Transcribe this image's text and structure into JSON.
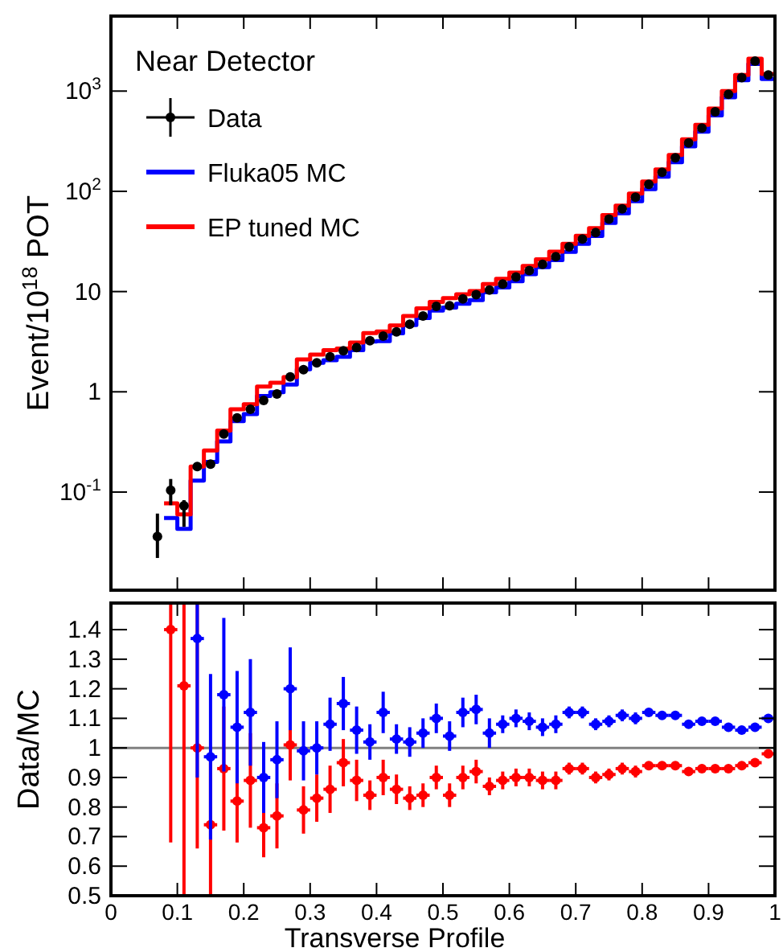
{
  "chart_data": [
    {
      "type": "histogram",
      "ylabel": "Event/10$^{18}$ POT",
      "legend_title": "Near Detector",
      "log": true,
      "legend": "top left",
      "tick_labels": "y",
      "xlim": [
        0,
        1
      ],
      "xticks": [
        {
          "value": 0,
          "label": null
        },
        {
          "value": 0.1,
          "label": null
        },
        {
          "value": 0.2,
          "label": null
        },
        {
          "value": 0.3,
          "label": null
        },
        {
          "value": 0.4,
          "label": null
        },
        {
          "value": 0.5,
          "label": null
        },
        {
          "value": 0.6,
          "label": null
        },
        {
          "value": 0.7,
          "label": null
        },
        {
          "value": 0.8,
          "label": null
        },
        {
          "value": 0.9,
          "label": null
        },
        {
          "value": 1,
          "label": null
        }
      ],
      "ylim": [
        0.0105,
        5600
      ],
      "yticks": [
        {
          "value": 0.1,
          "label": "10$^{-1}$"
        },
        1,
        10,
        {
          "value": 100,
          "label": "10$^{2}$"
        },
        {
          "value": 1000,
          "label": "10$^{3}$"
        }
      ],
      "bins": [
        0.08,
        0.1,
        0.12,
        0.14,
        0.16,
        0.18,
        0.2,
        0.22,
        0.24,
        0.26,
        0.28,
        0.3,
        0.32,
        0.34,
        0.36,
        0.38,
        0.4,
        0.42,
        0.44,
        0.46,
        0.48,
        0.5,
        0.52,
        0.54,
        0.56,
        0.58,
        0.6,
        0.62,
        0.64,
        0.66,
        0.68,
        0.7,
        0.72,
        0.74,
        0.76,
        0.78,
        0.8,
        0.82,
        0.84,
        0.86,
        0.88,
        0.9,
        0.92,
        0.94,
        0.96,
        0.98,
        1.0
      ],
      "series": [
        {
          "name": "Data",
          "type": "scatter",
          "color": "#000000",
          "marker": "circle",
          "x": [
            0.07,
            0.09,
            0.11,
            0.13,
            0.15,
            0.17,
            0.19,
            0.21,
            0.23,
            0.25,
            0.27,
            0.29,
            0.31,
            0.33,
            0.35,
            0.37,
            0.39,
            0.41,
            0.43,
            0.45,
            0.47,
            0.49,
            0.51,
            0.53,
            0.55,
            0.57,
            0.59,
            0.61,
            0.63,
            0.65,
            0.67,
            0.69,
            0.71,
            0.73,
            0.75,
            0.77,
            0.79,
            0.81,
            0.83,
            0.85,
            0.87,
            0.89,
            0.91,
            0.93,
            0.95,
            0.97,
            0.99
          ],
          "values": [
            0.036,
            0.104,
            0.073,
            0.18,
            0.19,
            0.38,
            0.55,
            0.67,
            0.82,
            0.95,
            1.41,
            1.66,
            1.95,
            2.24,
            2.57,
            2.76,
            3.23,
            3.6,
            3.96,
            4.73,
            5.71,
            7.11,
            7.22,
            8.46,
            9.29,
            10.35,
            11.9,
            13.95,
            16.2,
            18.7,
            22.3,
            27.9,
            33.5,
            38.7,
            52.8,
            67,
            87.4,
            117.5,
            155,
            216,
            304,
            428,
            623,
            930,
            1363,
            1995,
            1450
          ],
          "errors": [
            [
              0.022,
              0.061
            ],
            [
              0.074,
              0.135
            ],
            [
              0.045,
              0.083
            ],
            null,
            null,
            null,
            null,
            null,
            null,
            null,
            null,
            null,
            null,
            null,
            null,
            null,
            null,
            null,
            null,
            null,
            null,
            null,
            null,
            null,
            null,
            null,
            null,
            null,
            null,
            null,
            null,
            null,
            null,
            null,
            null,
            null,
            null,
            null,
            null,
            null,
            null,
            null,
            null,
            null,
            null,
            null,
            null
          ]
        },
        {
          "name": "Fluka05 MC",
          "color": "#0000ff",
          "values": [
            0.055,
            0.043,
            0.13,
            0.2,
            0.32,
            0.51,
            0.6,
            0.91,
            0.99,
            1.18,
            1.68,
            1.95,
            2.07,
            2.23,
            2.6,
            3.17,
            3.21,
            3.84,
            4.64,
            5.44,
            6.46,
            6.94,
            7.55,
            8.22,
            9.86,
            11.0,
            12.7,
            14.9,
            17.5,
            20.6,
            24.9,
            29.9,
            35.8,
            48.4,
            60.3,
            79.5,
            105,
            140,
            195,
            281,
            393,
            572,
            869,
            1286,
            1864,
            1318
          ]
        },
        {
          "name": "EP tuned MC",
          "color": "#ff0000",
          "values": [
            0.077,
            0.06,
            0.18,
            0.26,
            0.41,
            0.67,
            0.75,
            1.13,
            1.23,
            1.4,
            2.1,
            2.35,
            2.6,
            2.7,
            3.1,
            3.85,
            4.0,
            4.6,
            5.7,
            6.8,
            7.9,
            8.6,
            9.4,
            10.1,
            11.9,
            13.4,
            15.5,
            18,
            21,
            25,
            30,
            36,
            43,
            58,
            72,
            95,
            125,
            165,
            230,
            330,
            460,
            670,
            1000,
            1450,
            2100,
            1480
          ]
        }
      ]
    },
    {
      "type": "scatter",
      "xlabel": "Transverse Profile",
      "ylabel": "Data/MC",
      "marker": "circle",
      "xlim": [
        0,
        1
      ],
      "xticks": [
        0,
        0.1,
        0.2,
        0.3,
        0.4,
        0.5,
        0.6,
        0.7,
        0.8,
        0.9,
        1
      ],
      "ylim": [
        0.5,
        1.49
      ],
      "yticks": [
        0.5,
        0.6,
        0.7,
        0.8,
        0.9,
        1,
        1.1,
        1.2,
        1.3,
        1.4
      ],
      "ref_lines": [
        {
          "axis": "y",
          "value": 1,
          "color": "#808080"
        }
      ],
      "series": [
        {
          "color": "#0000ff",
          "x": [
            0.13,
            0.15,
            0.17,
            0.19,
            0.21,
            0.23,
            0.25,
            0.27,
            0.29,
            0.31,
            0.33,
            0.35,
            0.37,
            0.39,
            0.41,
            0.43,
            0.45,
            0.47,
            0.49,
            0.51,
            0.53,
            0.55,
            0.57,
            0.59,
            0.61,
            0.63,
            0.65,
            0.67,
            0.69,
            0.71,
            0.73,
            0.75,
            0.77,
            0.79,
            0.81,
            0.83,
            0.85,
            0.87,
            0.89,
            0.91,
            0.93,
            0.95,
            0.97,
            0.99
          ],
          "values": [
            1.37,
            0.97,
            1.18,
            1.07,
            1.12,
            0.9,
            0.96,
            1.2,
            0.99,
            1.0,
            1.08,
            1.15,
            1.06,
            1.02,
            1.12,
            1.03,
            1.02,
            1.05,
            1.1,
            1.04,
            1.12,
            1.13,
            1.05,
            1.08,
            1.1,
            1.09,
            1.07,
            1.08,
            1.12,
            1.12,
            1.08,
            1.09,
            1.11,
            1.1,
            1.12,
            1.11,
            1.11,
            1.08,
            1.09,
            1.09,
            1.07,
            1.06,
            1.07,
            1.1
          ],
          "errors": [
            [
              0.9,
              1.49
            ],
            0.28,
            0.26,
            0.19,
            0.18,
            0.12,
            0.13,
            0.14,
            0.1,
            0.09,
            0.09,
            0.09,
            0.08,
            0.06,
            0.07,
            0.05,
            0.05,
            0.05,
            0.05,
            0.05,
            0.05,
            0.05,
            0.05,
            0.03,
            0.03,
            0.03,
            0.03,
            0.03,
            0.02,
            0.02,
            0.02,
            0.02,
            0.02,
            0.02,
            0.01,
            0.01,
            0.01,
            0.01,
            0.01,
            0.01,
            0.01,
            0.01,
            0.01,
            0.01
          ],
          "xerrors": [
            0.01,
            0.01,
            0.01,
            0.01,
            0.01,
            0.01,
            0.01,
            0.01,
            0.01,
            0.01,
            0.01,
            0.01,
            0.01,
            0.01,
            0.01,
            0.01,
            0.01,
            0.01,
            0.01,
            0.01,
            0.01,
            0.01,
            0.01,
            0.01,
            0.01,
            0.01,
            0.01,
            0.01,
            0.01,
            0.01,
            0.01,
            0.01,
            0.01,
            0.01,
            0.01,
            0.01,
            0.01,
            0.01,
            0.01,
            0.01,
            0.01,
            0.01,
            0.01,
            0.01
          ]
        },
        {
          "color": "#ff0000",
          "x": [
            0.09,
            0.11,
            0.13,
            0.15,
            0.17,
            0.19,
            0.21,
            0.23,
            0.25,
            0.27,
            0.29,
            0.31,
            0.33,
            0.35,
            0.37,
            0.39,
            0.41,
            0.43,
            0.45,
            0.47,
            0.49,
            0.51,
            0.53,
            0.55,
            0.57,
            0.59,
            0.61,
            0.63,
            0.65,
            0.67,
            0.69,
            0.71,
            0.73,
            0.75,
            0.77,
            0.79,
            0.81,
            0.83,
            0.85,
            0.87,
            0.89,
            0.91,
            0.93,
            0.95,
            0.97,
            0.99
          ],
          "values": [
            1.4,
            1.21,
            1.0,
            0.74,
            0.93,
            0.82,
            0.89,
            0.73,
            0.77,
            1.01,
            0.79,
            0.83,
            0.86,
            0.95,
            0.89,
            0.84,
            0.9,
            0.86,
            0.83,
            0.84,
            0.9,
            0.84,
            0.9,
            0.92,
            0.87,
            0.89,
            0.9,
            0.9,
            0.89,
            0.89,
            0.93,
            0.93,
            0.9,
            0.91,
            0.93,
            0.92,
            0.94,
            0.94,
            0.94,
            0.92,
            0.93,
            0.93,
            0.93,
            0.94,
            0.95,
            0.98
          ],
          "errors": [
            [
              0.68,
              1.49
            ],
            [
              0.5,
              1.49
            ],
            [
              0.66,
              1.49
            ],
            0.24,
            0.21,
            0.14,
            0.16,
            0.1,
            0.11,
            0.12,
            0.08,
            0.08,
            0.08,
            0.08,
            0.07,
            0.05,
            0.06,
            0.05,
            0.04,
            0.04,
            0.04,
            0.04,
            0.04,
            0.04,
            0.03,
            0.03,
            0.03,
            0.03,
            0.03,
            0.03,
            0.02,
            0.02,
            0.02,
            0.02,
            0.02,
            0.02,
            0.01,
            0.01,
            0.01,
            0.01,
            0.01,
            0.01,
            0.01,
            0.01,
            0.01,
            0.01
          ],
          "xerrors": [
            0.01,
            0.01,
            0.01,
            0.01,
            0.01,
            0.01,
            0.01,
            0.01,
            0.01,
            0.01,
            0.01,
            0.01,
            0.01,
            0.01,
            0.01,
            0.01,
            0.01,
            0.01,
            0.01,
            0.01,
            0.01,
            0.01,
            0.01,
            0.01,
            0.01,
            0.01,
            0.01,
            0.01,
            0.01,
            0.01,
            0.01,
            0.01,
            0.01,
            0.01,
            0.01,
            0.01,
            0.01,
            0.01,
            0.01,
            0.01,
            0.01,
            0.01,
            0.01,
            0.01,
            0.01,
            0.01
          ]
        }
      ]
    }
  ]
}
